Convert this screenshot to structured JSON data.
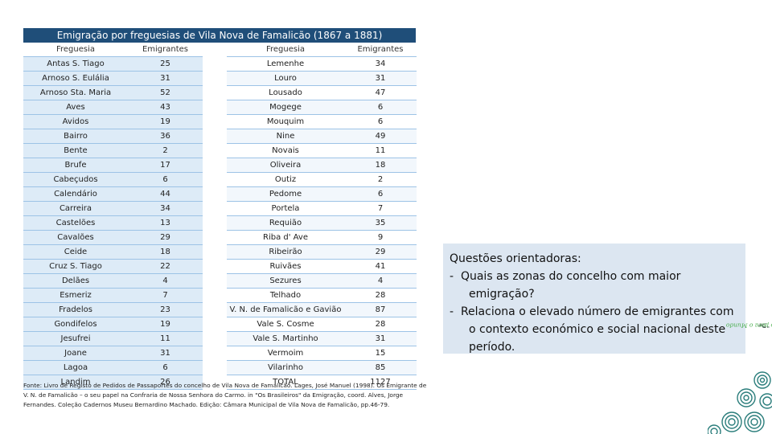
{
  "title": "Emigração por freguesias de Vila Nova de Famalicão (1867 a 1881)",
  "headers": {
    "left_parish": "Freguesia",
    "left_count": "Emigrantes",
    "right_parish": "Freguesia",
    "right_count": "Emigrantes"
  },
  "rows": [
    {
      "lp": "Antas S. Tiago",
      "lc": "25",
      "rp": "Lemenhe",
      "rc": "34"
    },
    {
      "lp": "Arnoso S. Eulália",
      "lc": "31",
      "rp": "Louro",
      "rc": "31"
    },
    {
      "lp": "Arnoso Sta. Maria",
      "lc": "52",
      "rp": "Lousado",
      "rc": "47"
    },
    {
      "lp": "Aves",
      "lc": "43",
      "rp": "Mogege",
      "rc": "6"
    },
    {
      "lp": "Avidos",
      "lc": "19",
      "rp": "Mouquim",
      "rc": "6"
    },
    {
      "lp": "Bairro",
      "lc": "36",
      "rp": "Nine",
      "rc": "49"
    },
    {
      "lp": "Bente",
      "lc": "2",
      "rp": "Novais",
      "rc": "11"
    },
    {
      "lp": "Brufe",
      "lc": "17",
      "rp": "Oliveira",
      "rc": "18"
    },
    {
      "lp": "Cabeçudos",
      "lc": "6",
      "rp": "Outiz",
      "rc": "2"
    },
    {
      "lp": "Calendário",
      "lc": "44",
      "rp": "Pedome",
      "rc": "6"
    },
    {
      "lp": "Carreira",
      "lc": "34",
      "rp": "Portela",
      "rc": "7"
    },
    {
      "lp": "Castelões",
      "lc": "13",
      "rp": "Requião",
      "rc": "35"
    },
    {
      "lp": "Cavalões",
      "lc": "29",
      "rp": "Riba d' Ave",
      "rc": "9"
    },
    {
      "lp": "Ceide",
      "lc": "18",
      "rp": "Ribeirão",
      "rc": "29"
    },
    {
      "lp": "Cruz S. Tiago",
      "lc": "22",
      "rp": "Ruivães",
      "rc": "41"
    },
    {
      "lp": "Delães",
      "lc": "4",
      "rp": "Sezures",
      "rc": "4"
    },
    {
      "lp": "Esmeriz",
      "lc": "7",
      "rp": "Telhado",
      "rc": "28"
    },
    {
      "lp": "Fradelos",
      "lc": "23",
      "rp": "V. N. de Famalicão e Gavião",
      "rc": "87"
    },
    {
      "lp": "Gondifelos",
      "lc": "19",
      "rp": "Vale S. Cosme",
      "rc": "28"
    },
    {
      "lp": "Jesufrei",
      "lc": "11",
      "rp": "Vale S. Martinho",
      "rc": "31"
    },
    {
      "lp": "Joane",
      "lc": "31",
      "rp": "Vermoim",
      "rc": "15"
    },
    {
      "lp": "Lagoa",
      "lc": "6",
      "rp": "Vilarinho",
      "rc": "85"
    },
    {
      "lp": "Landim",
      "lc": "26",
      "rp": "TOTAL",
      "rc": "1127"
    }
  ],
  "source": "Fonte: Livro de Registo de Pedidos de Passaportes do concelho de Vila Nova de Famalicão. Lages, José Manuel (1998). Os Emigrante de V. N. de Famalicão – o seu papel na Confraria de Nossa Senhora do Carmo. in \"Os Brasileiros\" da Emigração, coord. Alves, Jorge Fernandes. Coleção Cadernos Museu Bernardino Machado. Edição: Câmara Municipal de Vila Nova de Famalicão, pp.46-79.",
  "questions": {
    "heading": "Questões orientadoras:",
    "items": [
      "-  Quais as zonas do concelho com maior emigração?",
      "-  Relaciona o elevado número de emigrantes com o contexto económico e social nacional deste período."
    ]
  },
  "logo": {
    "text_before": "\"De ",
    "text_highlight": "Famalicão para o Mundo",
    "text_after": "\""
  }
}
